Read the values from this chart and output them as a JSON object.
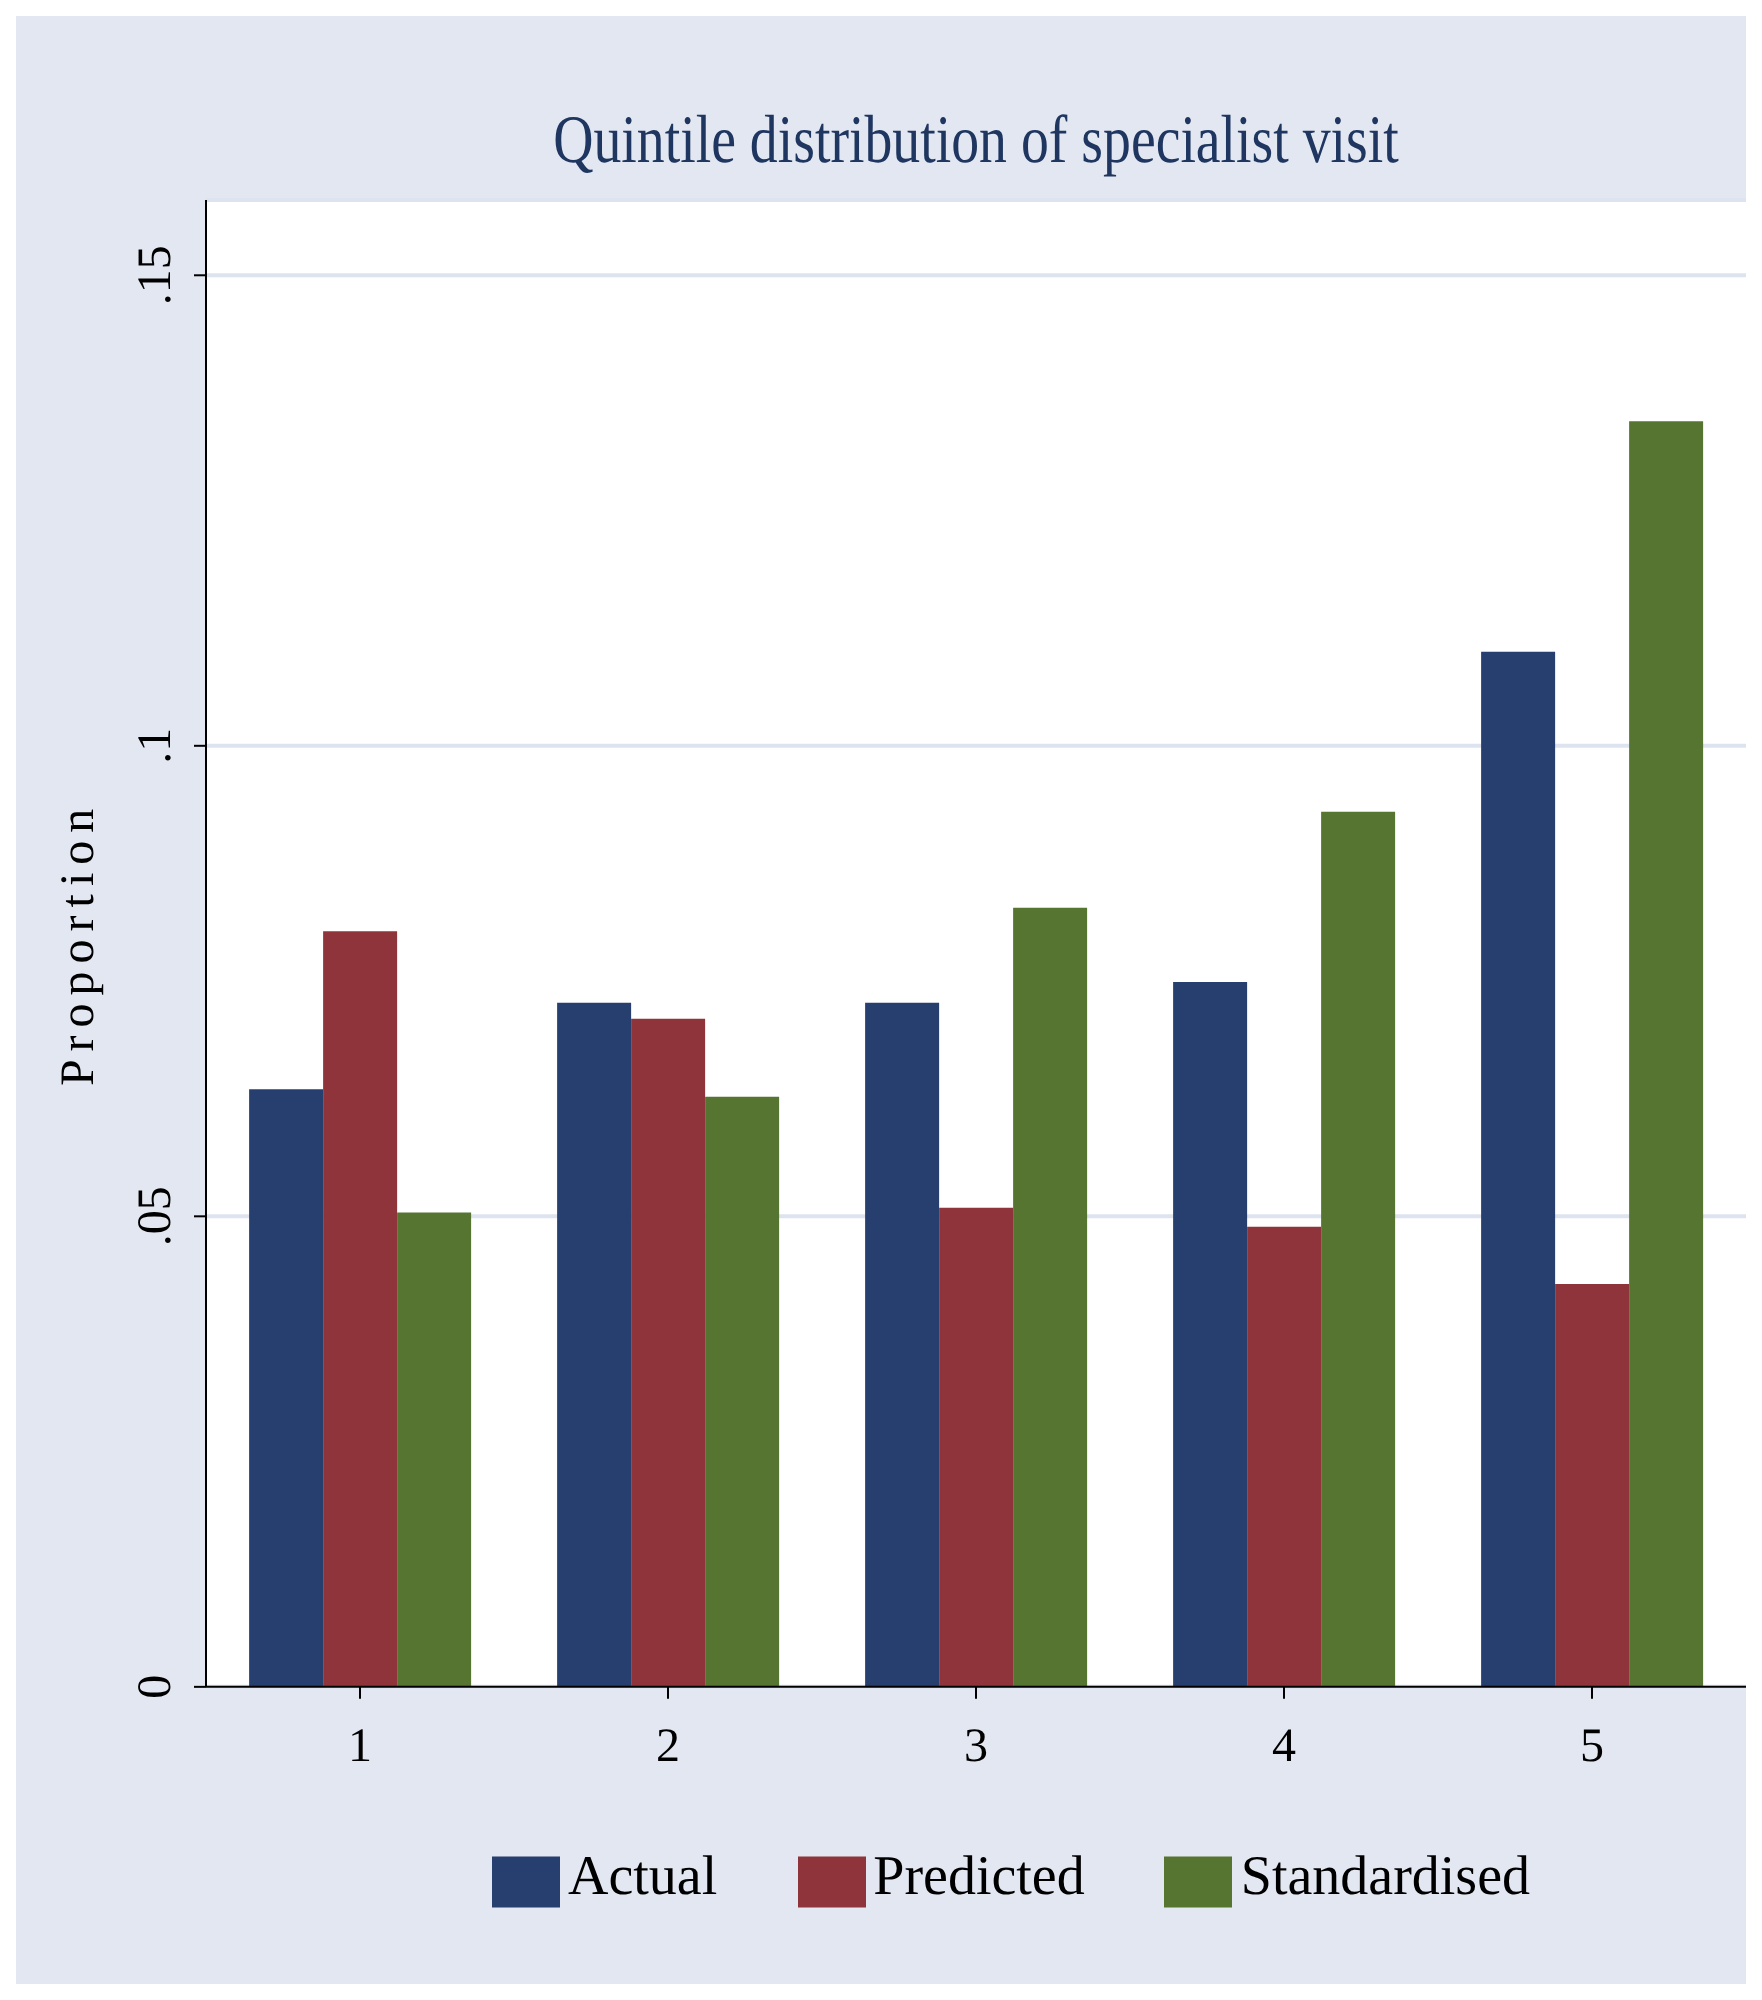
{
  "chart_data": {
    "type": "bar",
    "title": "Quintile distribution of specialist visit",
    "ylabel": "Proportion",
    "categories": [
      "1",
      "2",
      "3",
      "4",
      "5"
    ],
    "series": [
      {
        "name": "Actual",
        "color": "#263f6e",
        "values": [
          0.0635,
          0.0727,
          0.0727,
          0.0749,
          0.11
        ]
      },
      {
        "name": "Predicted",
        "color": "#8f343b",
        "values": [
          0.0803,
          0.071,
          0.0509,
          0.0489,
          0.0428
        ]
      },
      {
        "name": "Standardised",
        "color": "#567530",
        "values": [
          0.0504,
          0.0627,
          0.0828,
          0.093,
          0.1345
        ]
      }
    ],
    "ylim": [
      0,
      0.158
    ],
    "yticks": [
      0,
      {
        "value": 0.05,
        "label": ".05"
      },
      {
        "value": 0.1,
        "label": ".1"
      },
      {
        "value": 0.15,
        "label": ".15"
      }
    ],
    "grid": "y",
    "legend": "bottom"
  }
}
